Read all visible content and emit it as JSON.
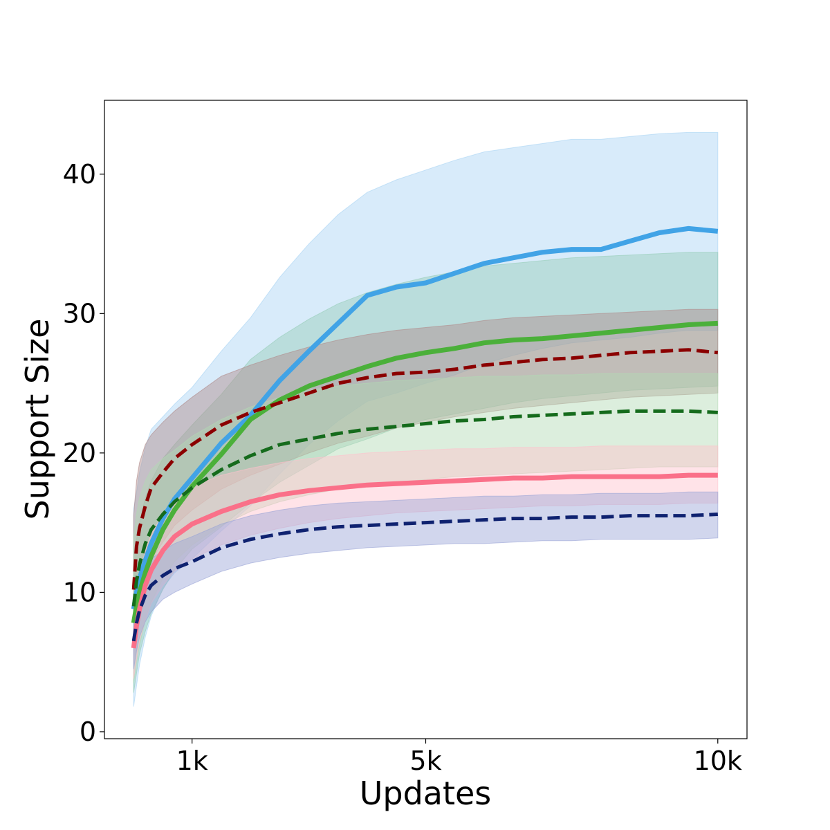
{
  "chart_data": {
    "type": "line",
    "title": "",
    "xlabel": "Updates",
    "ylabel": "Support Size",
    "xlim": [
      -500,
      10500
    ],
    "ylim": [
      -0.5,
      45.3
    ],
    "grid": false,
    "legend": "none",
    "x_ticks": [
      {
        "value": 1000,
        "label": "1k"
      },
      {
        "value": 5000,
        "label": "5k"
      },
      {
        "value": 10000,
        "label": "10k"
      }
    ],
    "y_ticks": [
      {
        "value": 0,
        "label": "0"
      },
      {
        "value": 10,
        "label": "10"
      },
      {
        "value": 20,
        "label": "20"
      },
      {
        "value": 30,
        "label": "30"
      },
      {
        "value": 40,
        "label": "40"
      }
    ],
    "x": [
      0,
      50,
      100,
      200,
      300,
      500,
      700,
      1000,
      1500,
      2000,
      2500,
      3000,
      3500,
      4000,
      4500,
      5000,
      5500,
      6000,
      6500,
      7000,
      7500,
      8000,
      8500,
      9000,
      9500,
      10000
    ],
    "series": [
      {
        "color": "#41a3e6",
        "fill_color": "#a9d3f3",
        "dashed": false,
        "mean": [
          8.8,
          10.0,
          11.0,
          12.3,
          13.5,
          15.3,
          16.7,
          18.2,
          20.7,
          22.7,
          25.2,
          27.3,
          29.3,
          31.3,
          31.9,
          32.2,
          32.9,
          33.6,
          34.0,
          34.4,
          34.6,
          34.6,
          35.2,
          35.8,
          36.1,
          35.9
        ],
        "lower": [
          1.8,
          3.3,
          4.8,
          6.8,
          8.3,
          10.3,
          11.4,
          12.4,
          14.4,
          16.2,
          18.5,
          20.6,
          22.3,
          23.7,
          24.3,
          25.0,
          25.6,
          26.4,
          27.0,
          27.5,
          27.9,
          28.1,
          28.3,
          28.6,
          28.8,
          28.8
        ],
        "upper": [
          16.0,
          17.2,
          18.6,
          20.4,
          21.7,
          22.6,
          23.5,
          24.7,
          27.3,
          29.7,
          32.6,
          35.0,
          37.1,
          38.7,
          39.6,
          40.3,
          41.0,
          41.6,
          41.9,
          42.2,
          42.5,
          42.5,
          42.7,
          42.9,
          43.0,
          43.0
        ]
      },
      {
        "color": "#4bb03a",
        "fill_color": "#96cdb7",
        "dashed": false,
        "mean": [
          7.8,
          9.0,
          10.0,
          11.4,
          12.6,
          14.5,
          15.9,
          17.6,
          19.9,
          22.4,
          23.8,
          24.8,
          25.5,
          26.2,
          26.8,
          27.2,
          27.5,
          27.9,
          28.1,
          28.2,
          28.4,
          28.6,
          28.8,
          29.0,
          29.2,
          29.3
        ],
        "lower": [
          2.8,
          4.2,
          5.6,
          7.2,
          8.5,
          10.2,
          11.6,
          13.1,
          14.7,
          16.4,
          17.9,
          19.1,
          20.3,
          21.0,
          21.8,
          22.4,
          22.8,
          23.2,
          23.6,
          23.9,
          24.1,
          24.3,
          24.5,
          24.6,
          24.7,
          24.8
        ],
        "upper": [
          12.5,
          13.8,
          15.0,
          16.8,
          18.0,
          19.6,
          20.6,
          22.0,
          24.2,
          26.7,
          28.3,
          29.6,
          30.7,
          31.5,
          32.1,
          32.6,
          33.0,
          33.4,
          33.6,
          33.8,
          34.0,
          34.1,
          34.2,
          34.3,
          34.4,
          34.4
        ]
      },
      {
        "color": "#8b0000",
        "fill_color": "#b08a8a",
        "dashed": true,
        "mean": [
          10.2,
          13.3,
          14.6,
          16.2,
          17.5,
          18.6,
          19.6,
          20.6,
          22.0,
          22.9,
          23.6,
          24.3,
          25.0,
          25.4,
          25.7,
          25.8,
          26.0,
          26.3,
          26.5,
          26.7,
          26.8,
          27.0,
          27.2,
          27.3,
          27.4,
          27.2
        ],
        "lower": [
          6.0,
          8.2,
          9.5,
          11.2,
          12.3,
          13.6,
          14.8,
          15.9,
          17.4,
          18.4,
          19.2,
          20.0,
          20.7,
          21.2,
          21.8,
          22.2,
          22.6,
          22.9,
          23.2,
          23.4,
          23.6,
          23.8,
          24.0,
          24.1,
          24.2,
          24.3
        ],
        "upper": [
          15.5,
          18.0,
          19.3,
          20.6,
          21.3,
          22.2,
          23.0,
          24.0,
          25.5,
          26.3,
          27.0,
          27.6,
          28.1,
          28.5,
          28.8,
          29.0,
          29.2,
          29.5,
          29.7,
          29.8,
          29.9,
          30.0,
          30.1,
          30.2,
          30.3,
          30.3
        ]
      },
      {
        "color": "#156b1c",
        "fill_color": "#b2d9b4",
        "dashed": true,
        "mean": [
          9.0,
          10.8,
          12.0,
          13.5,
          14.5,
          15.6,
          16.5,
          17.5,
          18.8,
          19.8,
          20.6,
          21.0,
          21.4,
          21.7,
          21.9,
          22.1,
          22.3,
          22.4,
          22.6,
          22.7,
          22.8,
          22.9,
          23.0,
          23.0,
          23.0,
          22.9
        ],
        "lower": [
          3.5,
          5.0,
          6.2,
          8.0,
          9.3,
          11.0,
          12.2,
          13.4,
          14.8,
          15.8,
          16.5,
          17.0,
          17.4,
          17.7,
          17.9,
          18.1,
          18.3,
          18.4,
          18.5,
          18.6,
          18.7,
          18.8,
          18.9,
          19.0,
          19.0,
          19.0
        ],
        "upper": [
          14.0,
          15.6,
          16.8,
          18.0,
          18.8,
          19.6,
          20.2,
          21.2,
          22.4,
          23.3,
          24.0,
          24.5,
          24.8,
          25.0,
          25.2,
          25.3,
          25.4,
          25.5,
          25.5,
          25.6,
          25.6,
          25.7,
          25.7,
          25.7,
          25.7,
          25.7
        ]
      },
      {
        "color": "#fa7089",
        "fill_color": "#ffc2cd",
        "dashed": false,
        "mean": [
          6.0,
          7.6,
          8.8,
          10.5,
          11.6,
          13.0,
          14.0,
          14.9,
          15.8,
          16.5,
          17.0,
          17.3,
          17.5,
          17.7,
          17.8,
          17.9,
          18.0,
          18.1,
          18.2,
          18.2,
          18.3,
          18.3,
          18.3,
          18.3,
          18.4,
          18.4
        ],
        "lower": [
          3.8,
          5.2,
          6.5,
          8.0,
          9.2,
          10.5,
          11.5,
          12.4,
          13.4,
          14.1,
          14.6,
          15.0,
          15.3,
          15.5,
          15.7,
          15.8,
          15.9,
          16.0,
          16.1,
          16.2,
          16.2,
          16.3,
          16.3,
          16.3,
          16.4,
          16.4
        ],
        "upper": [
          8.4,
          10.0,
          11.3,
          13.0,
          14.2,
          15.6,
          16.6,
          17.6,
          18.4,
          18.9,
          19.3,
          19.6,
          19.8,
          20.0,
          20.1,
          20.2,
          20.3,
          20.3,
          20.4,
          20.4,
          20.4,
          20.5,
          20.5,
          20.5,
          20.5,
          20.5
        ]
      },
      {
        "color": "#0f2270",
        "fill_color": "#9aa3d6",
        "dashed": true,
        "mean": [
          6.5,
          7.8,
          8.7,
          9.8,
          10.5,
          11.2,
          11.7,
          12.2,
          13.2,
          13.8,
          14.2,
          14.5,
          14.7,
          14.8,
          14.9,
          15.0,
          15.1,
          15.2,
          15.3,
          15.3,
          15.4,
          15.4,
          15.5,
          15.5,
          15.5,
          15.6
        ],
        "lower": [
          4.5,
          5.8,
          6.8,
          7.9,
          8.6,
          9.5,
          10.0,
          10.6,
          11.5,
          12.1,
          12.5,
          12.8,
          13.0,
          13.2,
          13.3,
          13.4,
          13.5,
          13.5,
          13.6,
          13.7,
          13.7,
          13.8,
          13.8,
          13.8,
          13.8,
          13.9
        ],
        "upper": [
          8.7,
          10.0,
          10.8,
          11.8,
          12.4,
          13.0,
          13.5,
          14.0,
          14.9,
          15.5,
          15.9,
          16.2,
          16.4,
          16.5,
          16.6,
          16.7,
          16.8,
          16.9,
          16.9,
          17.0,
          17.0,
          17.1,
          17.1,
          17.1,
          17.2,
          17.2
        ]
      }
    ]
  }
}
